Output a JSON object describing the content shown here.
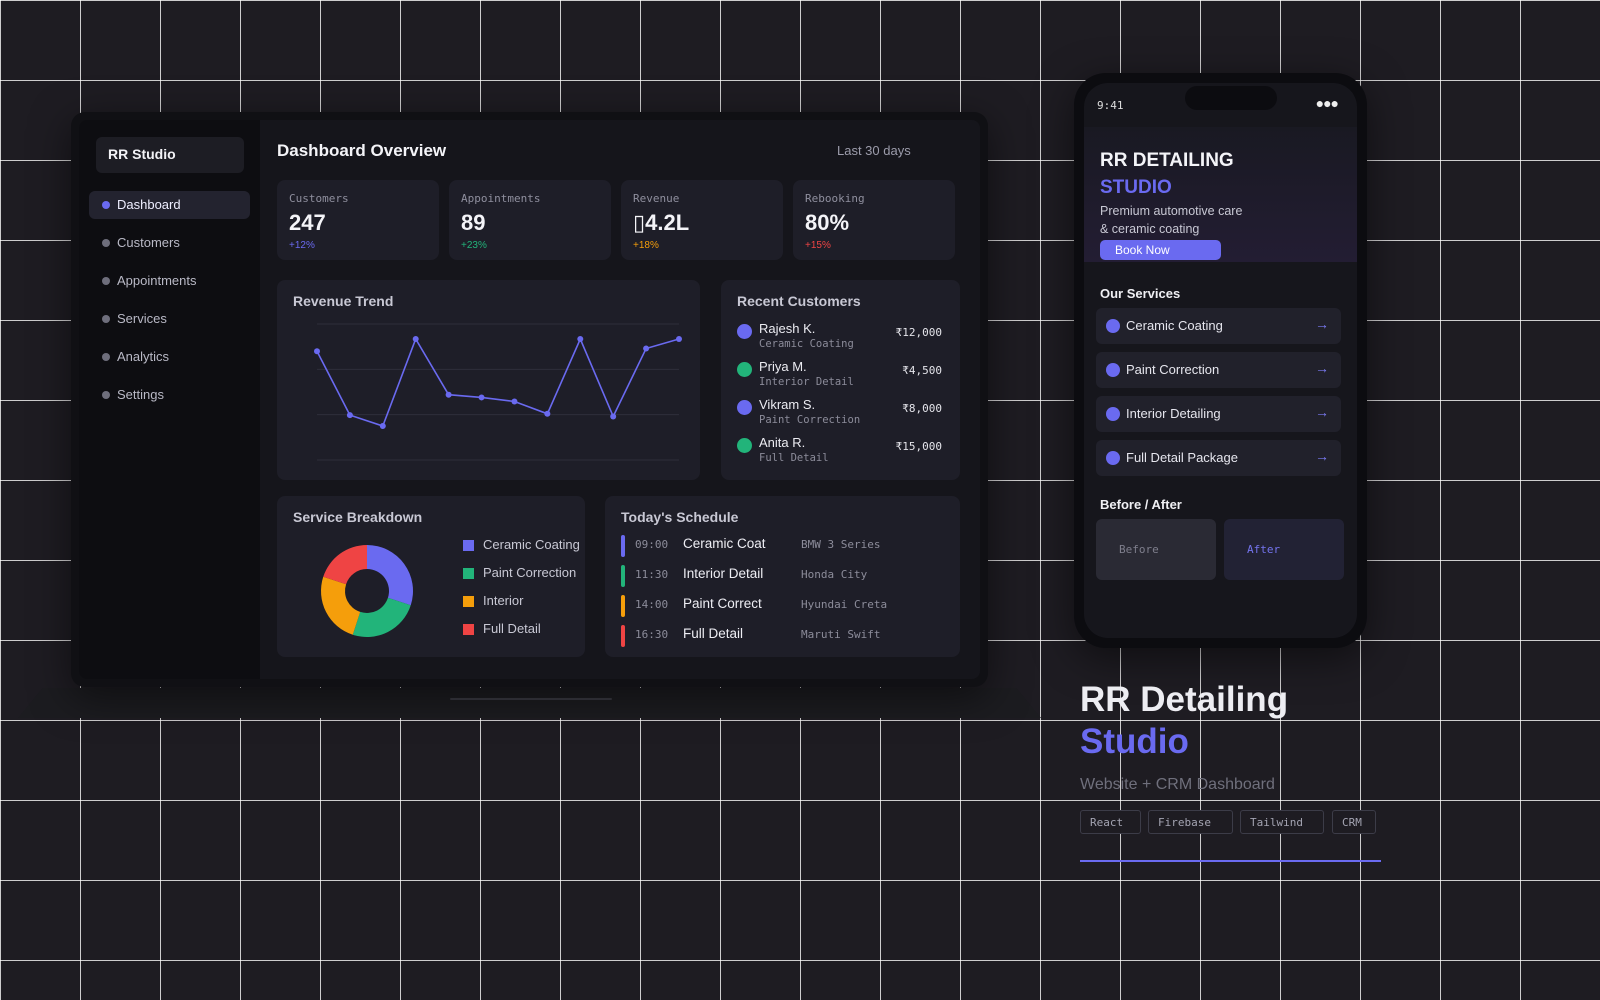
{
  "dashboard": {
    "brand": "RR Studio",
    "title": "Dashboard Overview",
    "range": "Last 30 days",
    "nav": [
      {
        "label": "Dashboard",
        "active": true
      },
      {
        "label": "Customers",
        "active": false
      },
      {
        "label": "Appointments",
        "active": false
      },
      {
        "label": "Services",
        "active": false
      },
      {
        "label": "Analytics",
        "active": false
      },
      {
        "label": "Settings",
        "active": false
      }
    ],
    "stats": [
      {
        "label": "Customers",
        "value": "247",
        "delta": "+12%",
        "delta_color": "#6a6af0"
      },
      {
        "label": "Appointments",
        "value": "89",
        "delta": "+23%",
        "delta_color": "#22b47a"
      },
      {
        "label": "Revenue",
        "value": "▯4.2L",
        "delta": "+18%",
        "delta_color": "#f59e0b"
      },
      {
        "label": "Rebooking",
        "value": "80%",
        "delta": "+15%",
        "delta_color": "#ef4444"
      }
    ],
    "revenue_trend": {
      "title": "Revenue Trend",
      "values": [
        80,
        33,
        25,
        89,
        48,
        46,
        43,
        34,
        89,
        32,
        82,
        89
      ],
      "ylim": [
        0,
        100
      ],
      "line_color": "#6a6af0"
    },
    "recent_customers": {
      "title": "Recent Customers",
      "items": [
        {
          "name": "Rajesh K.",
          "service": "Ceramic Coating",
          "amount": "₹12,000",
          "color": "#6a6af0"
        },
        {
          "name": "Priya M.",
          "service": "Interior Detail",
          "amount": "₹4,500",
          "color": "#22b47a"
        },
        {
          "name": "Vikram S.",
          "service": "Paint Correction",
          "amount": "₹8,000",
          "color": "#6a6af0"
        },
        {
          "name": "Anita R.",
          "service": "Full Detail",
          "amount": "₹15,000",
          "color": "#22b47a"
        }
      ]
    },
    "service_breakdown": {
      "title": "Service Breakdown",
      "slices": [
        {
          "label": "Ceramic Coating",
          "value": 30,
          "color": "#6a6af0"
        },
        {
          "label": "Paint Correction",
          "value": 25,
          "color": "#22b47a"
        },
        {
          "label": "Interior",
          "value": 25,
          "color": "#f59e0b"
        },
        {
          "label": "Full Detail",
          "value": 20,
          "color": "#ef4444"
        }
      ]
    },
    "schedule": {
      "title": "Today's Schedule",
      "items": [
        {
          "time": "09:00",
          "service": "Ceramic Coat",
          "car": "BMW 3 Series",
          "color": "#6a6af0"
        },
        {
          "time": "11:30",
          "service": "Interior Detail",
          "car": "Honda City",
          "color": "#22b47a"
        },
        {
          "time": "14:00",
          "service": "Paint Correct",
          "car": "Hyundai Creta",
          "color": "#f59e0b"
        },
        {
          "time": "16:30",
          "service": "Full Detail",
          "car": "Maruti Swift",
          "color": "#ef4444"
        }
      ]
    }
  },
  "phone": {
    "time": "9:41",
    "menu_icon": "●●●",
    "hero_title_1": "RR DETAILING",
    "hero_title_2": "STUDIO",
    "hero_subtitle_1": "Premium automotive care",
    "hero_subtitle_2": "& ceramic coating",
    "book_button": "Book Now",
    "services_title": "Our Services",
    "services": [
      {
        "label": "Ceramic Coating",
        "arrow": "→"
      },
      {
        "label": "Paint Correction",
        "arrow": "→"
      },
      {
        "label": "Interior Detailing",
        "arrow": "→"
      },
      {
        "label": "Full Detail Package",
        "arrow": "→"
      }
    ],
    "before_after_title": "Before / After",
    "before_label": "Before",
    "after_label": "After"
  },
  "project": {
    "title_1": "RR Detailing",
    "title_2": "Studio",
    "subtitle": "Website + CRM Dashboard",
    "tags": [
      "React",
      "Firebase",
      "Tailwind",
      "CRM"
    ],
    "accent": "#6a6af0"
  }
}
